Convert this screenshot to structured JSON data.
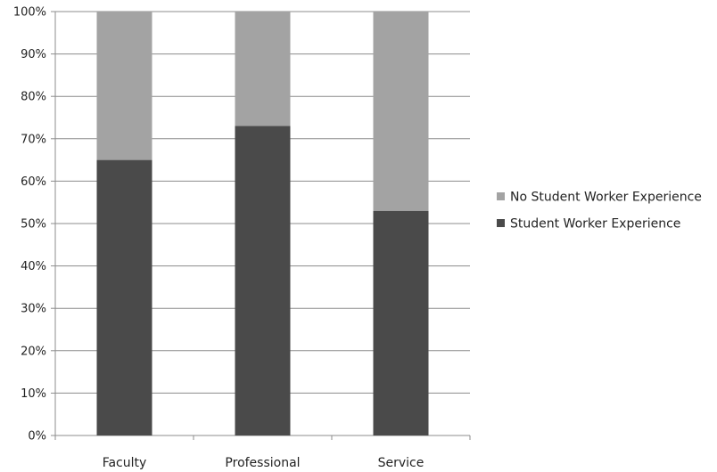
{
  "chart_data": {
    "type": "bar",
    "stacked": true,
    "categories": [
      "Faculty",
      "Professional",
      "Service"
    ],
    "series": [
      {
        "name": "Student Worker Experience",
        "values": [
          65,
          73,
          53
        ],
        "color": "#4a4a4a"
      },
      {
        "name": "No Student Worker Experience",
        "values": [
          35,
          27,
          47
        ],
        "color": "#a3a3a3"
      }
    ],
    "y_ticks": [
      "0%",
      "10%",
      "20%",
      "30%",
      "40%",
      "50%",
      "60%",
      "70%",
      "80%",
      "90%",
      "100%"
    ],
    "ylim": [
      0,
      100
    ],
    "grid": true,
    "legend_position": "right",
    "legend_order": [
      "No Student Worker Experience",
      "Student Worker Experience"
    ]
  }
}
